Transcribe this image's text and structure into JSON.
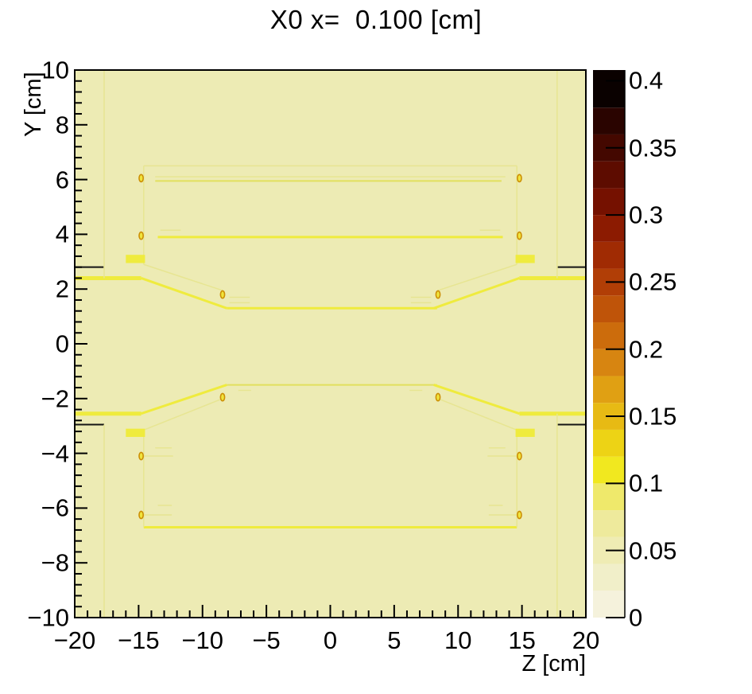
{
  "chart_data": {
    "type": "heatmap",
    "title": "X0 x=  0.100 [cm]",
    "xlabel": "Z [cm]",
    "ylabel": "Y [cm]",
    "xlim": [
      -20,
      20
    ],
    "ylim": [
      -10,
      10
    ],
    "grid": false,
    "x_major_ticks": [
      -20,
      -15,
      -10,
      -5,
      0,
      5,
      10,
      15,
      20
    ],
    "x_tick_labels": [
      "−20",
      "−15",
      "−10",
      "−5",
      "0",
      "5",
      "10",
      "15",
      "20"
    ],
    "x_minor_step": 1,
    "y_major_ticks": [
      -10,
      -8,
      -6,
      -4,
      -2,
      0,
      2,
      4,
      6,
      8,
      10
    ],
    "y_tick_labels": [
      "−10",
      "−8",
      "−6",
      "−4",
      "−2",
      "0",
      "2",
      "4",
      "6",
      "8",
      "10"
    ],
    "y_minor_step": 0.4,
    "background_color": "#EDEBB4",
    "frame_color": "#000000",
    "colorbar": {
      "position": "right",
      "min": 0,
      "max": 0.4,
      "axis_max": 0.408,
      "tick_values": [
        0,
        0.05,
        0.1,
        0.15,
        0.2,
        0.25,
        0.3,
        0.35,
        0.4
      ],
      "tick_labels": [
        "0",
        "0.05",
        "0.1",
        "0.15",
        "0.2",
        "0.25",
        "0.3",
        "0.35",
        "0.4"
      ],
      "n_bands": 20,
      "band_colors": [
        "#F5F2DC",
        "#F1EFC9",
        "#EFECB4",
        "#EEEA9C",
        "#EFE96B",
        "#F1E81F",
        "#EDD315",
        "#E7BA14",
        "#E0A013",
        "#D78511",
        "#CC6C0C",
        "#BF5409",
        "#B13E06",
        "#A02B03",
        "#8C1B01",
        "#751100",
        "#5D0C00",
        "#440800",
        "#2A0400",
        "#0A0100"
      ]
    },
    "styles": {
      "thin": {
        "color": "#E7E592",
        "width": 1.5
      },
      "med": {
        "color": "#E2E05E",
        "width": 2
      },
      "bright": {
        "color": "#EFEB3E",
        "width": 3
      },
      "thick": {
        "color": "#EFEB3E",
        "width": 5
      },
      "black": {
        "color": "#141414",
        "width": 2
      },
      "marker": {
        "stroke": "#CC8F06",
        "fill": "#F0E43C",
        "rx": 2.6,
        "ry": 4.6
      }
    },
    "geometry": {
      "h_segments": [
        [
          6.5,
          -14.6,
          14.6,
          "thin"
        ],
        [
          6.1,
          -13.7,
          13.7,
          "thin"
        ],
        [
          5.95,
          -13.7,
          13.4,
          "med"
        ],
        [
          3.9,
          -13.5,
          13.5,
          "bright"
        ],
        [
          4.15,
          -13.3,
          -11.7,
          "thin"
        ],
        [
          4.15,
          11.7,
          13.3,
          "thin"
        ],
        [
          2.8,
          -20.0,
          -17.7,
          "black"
        ],
        [
          2.8,
          17.8,
          20.0,
          "black"
        ],
        [
          2.4,
          -20.0,
          -14.8,
          "thick"
        ],
        [
          2.4,
          14.8,
          20.0,
          "thick"
        ],
        [
          1.3,
          -8.1,
          8.35,
          "bright"
        ],
        [
          1.7,
          -7.9,
          -6.3,
          "thin"
        ],
        [
          1.5,
          -7.9,
          -6.3,
          "thin"
        ],
        [
          1.7,
          6.3,
          7.9,
          "thin"
        ],
        [
          1.5,
          6.3,
          7.9,
          "thin"
        ],
        [
          -1.5,
          -8.1,
          8.35,
          "med"
        ],
        [
          -1.7,
          -7.2,
          -6.2,
          "thin"
        ],
        [
          -1.7,
          6.2,
          7.2,
          "thin"
        ],
        [
          -2.55,
          -20.0,
          -14.8,
          "thick"
        ],
        [
          -2.55,
          14.8,
          20.0,
          "thick"
        ],
        [
          -2.95,
          -20.0,
          -17.7,
          "black"
        ],
        [
          -2.95,
          17.8,
          20.0,
          "black"
        ],
        [
          -3.8,
          -13.7,
          -12.4,
          "thin"
        ],
        [
          -3.8,
          12.4,
          13.7,
          "thin"
        ],
        [
          -4.1,
          -14.6,
          -12.3,
          "thin"
        ],
        [
          -4.1,
          12.3,
          14.6,
          "thin"
        ],
        [
          -5.9,
          -13.5,
          -12.4,
          "thin"
        ],
        [
          -5.9,
          12.4,
          13.5,
          "thin"
        ],
        [
          -6.25,
          -14.6,
          -12.4,
          "thin"
        ],
        [
          -6.25,
          12.4,
          14.6,
          "thin"
        ],
        [
          -6.7,
          -14.6,
          14.6,
          "bright"
        ]
      ],
      "v_segments": [
        [
          -17.7,
          2.4,
          10.0,
          "thin"
        ],
        [
          -17.7,
          -10.0,
          -2.95,
          "thin"
        ],
        [
          17.75,
          2.4,
          10.0,
          "thin"
        ],
        [
          17.75,
          -10.0,
          -2.55,
          "thin"
        ],
        [
          -14.6,
          2.9,
          6.5,
          "thin"
        ],
        [
          14.6,
          2.9,
          6.5,
          "thin"
        ],
        [
          -14.6,
          -6.7,
          -3.2,
          "thin"
        ],
        [
          14.6,
          -6.7,
          -3.2,
          "thin"
        ]
      ],
      "slant_segments": [
        [
          -14.6,
          2.9,
          -8.43,
          1.95,
          "thin"
        ],
        [
          14.6,
          2.9,
          8.43,
          1.95,
          "thin"
        ],
        [
          -14.6,
          -3.15,
          -8.43,
          -2.0,
          "thin"
        ],
        [
          14.6,
          -3.15,
          8.43,
          -2.0,
          "thin"
        ],
        [
          -14.8,
          2.4,
          -8.1,
          1.3,
          "bright"
        ],
        [
          14.8,
          2.4,
          8.1,
          1.3,
          "bright"
        ],
        [
          -14.8,
          -2.55,
          -8.1,
          -1.5,
          "bright"
        ],
        [
          14.8,
          -2.55,
          8.1,
          -1.5,
          "bright"
        ]
      ],
      "bars": [
        [
          -16.0,
          2.95,
          -14.5,
          3.25
        ],
        [
          14.5,
          2.95,
          16.0,
          3.25
        ],
        [
          -16.0,
          -3.4,
          -14.5,
          -3.1
        ],
        [
          14.5,
          -3.4,
          16.0,
          -3.1
        ]
      ],
      "markers": [
        [
          -14.8,
          6.05
        ],
        [
          14.8,
          6.05
        ],
        [
          -14.8,
          3.95
        ],
        [
          14.8,
          3.95
        ],
        [
          -8.43,
          1.8
        ],
        [
          8.43,
          1.8
        ],
        [
          -8.43,
          -1.95
        ],
        [
          8.43,
          -1.95
        ],
        [
          -14.8,
          -4.1
        ],
        [
          14.8,
          -4.1
        ],
        [
          -14.8,
          -6.25
        ],
        [
          14.8,
          -6.25
        ]
      ]
    }
  }
}
